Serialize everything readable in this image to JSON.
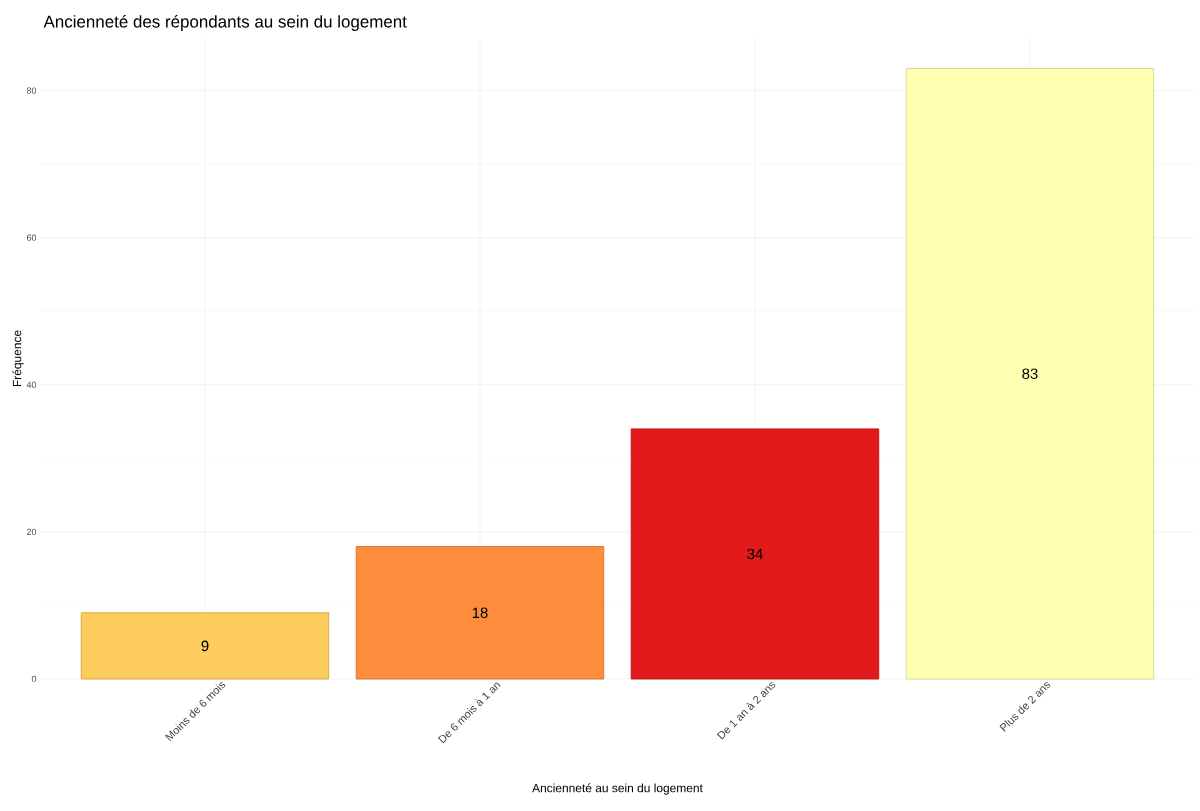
{
  "chart_data": {
    "type": "bar",
    "title": "Ancienneté des répondants au sein du logement",
    "xlabel": "Ancienneté au sein du logement",
    "ylabel": "Fréquence",
    "categories": [
      "Moins de 6 mois",
      "De 6 mois à 1 an",
      "De 1 an à 2 ans",
      "Plus de 2 ans"
    ],
    "values": [
      9,
      18,
      34,
      83
    ],
    "colors": [
      "#fecc5c",
      "#fd8d3c",
      "#e31a1c",
      "#ffffb2"
    ],
    "ylim": [
      0,
      87.15
    ],
    "yticks": [
      0,
      20,
      40,
      60,
      80
    ],
    "grid": true,
    "data_labels": true
  }
}
